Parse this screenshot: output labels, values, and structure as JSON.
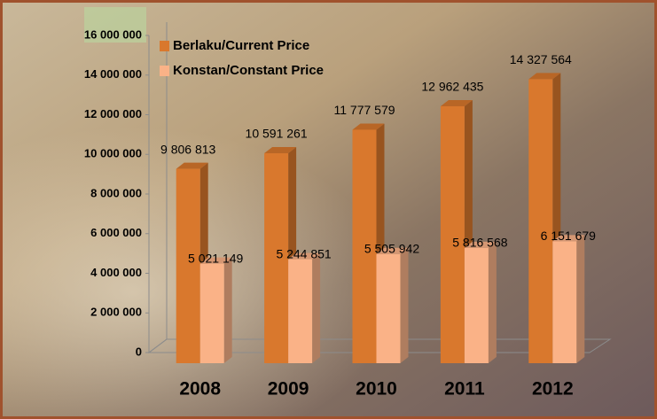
{
  "chart_data": {
    "type": "bar3d",
    "categories": [
      "2008",
      "2009",
      "2010",
      "2011",
      "2012"
    ],
    "series": [
      {
        "name": "Berlaku/Current Price",
        "color": "#d9782d",
        "values": [
          9806813,
          10591261,
          11777579,
          12962435,
          14327564
        ],
        "value_labels": [
          "9 806 813",
          "10 591 261",
          "11 777 579",
          "12 962 435",
          "14 327 564"
        ]
      },
      {
        "name": "Konstan/Constant Price",
        "color": "#fab287",
        "values": [
          5021149,
          5244851,
          5505942,
          5816568,
          6151679
        ],
        "value_labels": [
          "5 021 149",
          "5 244 851",
          "5 505 942",
          "5 816 568",
          "6 151 679"
        ]
      }
    ],
    "ylim": [
      0,
      16000000
    ],
    "yticks": [
      0,
      {
        "value": 2000000,
        "label": "2 000 000"
      },
      {
        "value": 4000000,
        "label": "4 000 000"
      },
      {
        "value": 6000000,
        "label": "6 000 000"
      },
      {
        "value": 8000000,
        "label": "8 000 000"
      },
      {
        "value": 10000000,
        "label": "10 000 000"
      },
      {
        "value": 12000000,
        "label": "12 000 000"
      },
      {
        "value": 14000000,
        "label": "14 000 000"
      },
      {
        "value": 16000000,
        "label": "16 000 000"
      }
    ],
    "legend": "top-left"
  }
}
